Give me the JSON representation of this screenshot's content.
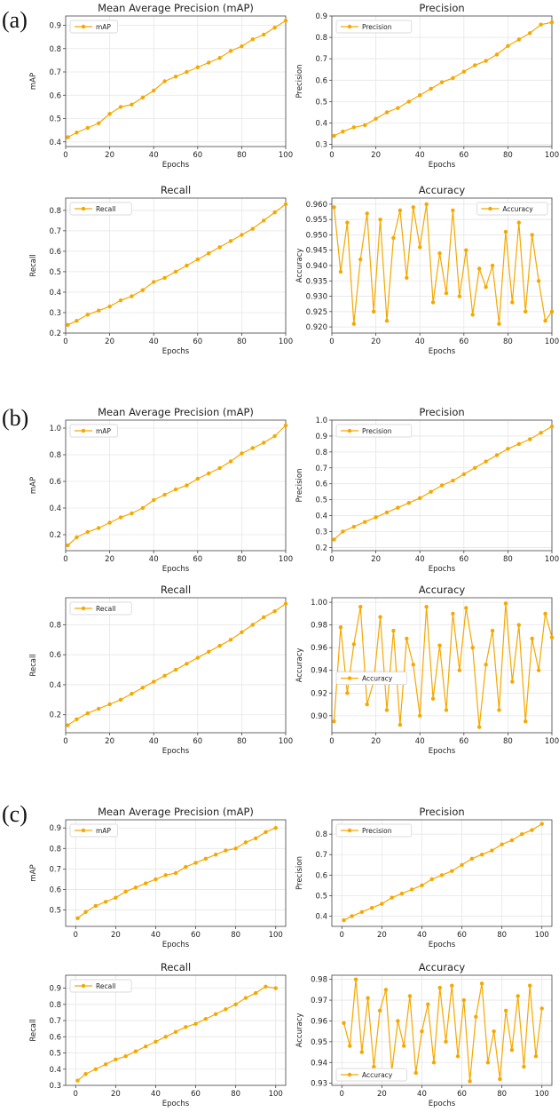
{
  "panels": [
    {
      "label": "(a)"
    },
    {
      "label": "(b)"
    },
    {
      "label": "(c)"
    }
  ],
  "series_color": "#f5a800",
  "chart_data": [
    {
      "type": "line",
      "title": "Mean Average Precision (mAP)",
      "xlabel": "Epochs",
      "ylabel": "mAP",
      "legend": "mAP",
      "legend_position": "top-left",
      "grid": true,
      "xlim": [
        0,
        100
      ],
      "ylim": [
        0.38,
        0.94
      ],
      "xticks": [
        0,
        20,
        40,
        60,
        80,
        100
      ],
      "yticks": [
        0.4,
        0.5,
        0.6,
        0.7,
        0.8,
        0.9
      ],
      "x": [
        1,
        5,
        10,
        15,
        20,
        25,
        30,
        35,
        40,
        45,
        50,
        55,
        60,
        65,
        70,
        75,
        80,
        85,
        90,
        95,
        100
      ],
      "y": [
        0.42,
        0.44,
        0.46,
        0.48,
        0.52,
        0.55,
        0.56,
        0.59,
        0.62,
        0.66,
        0.68,
        0.7,
        0.72,
        0.74,
        0.76,
        0.79,
        0.81,
        0.84,
        0.86,
        0.89,
        0.92
      ]
    },
    {
      "type": "line",
      "title": "Precision",
      "xlabel": "Epochs",
      "ylabel": "Precision",
      "legend": "Precision",
      "legend_position": "top-left",
      "grid": true,
      "xlim": [
        0,
        100
      ],
      "ylim": [
        0.29,
        0.9
      ],
      "xticks": [
        0,
        20,
        40,
        60,
        80,
        100
      ],
      "yticks": [
        0.3,
        0.4,
        0.5,
        0.6,
        0.7,
        0.8,
        0.9
      ],
      "x": [
        1,
        5,
        10,
        15,
        20,
        25,
        30,
        35,
        40,
        45,
        50,
        55,
        60,
        65,
        70,
        75,
        80,
        85,
        90,
        95,
        100
      ],
      "y": [
        0.34,
        0.36,
        0.38,
        0.39,
        0.42,
        0.45,
        0.47,
        0.5,
        0.53,
        0.56,
        0.59,
        0.61,
        0.64,
        0.67,
        0.69,
        0.72,
        0.76,
        0.79,
        0.82,
        0.86,
        0.87
      ]
    },
    {
      "type": "line",
      "title": "Recall",
      "xlabel": "Epochs",
      "ylabel": "Recall",
      "legend": "Recall",
      "legend_position": "top-left",
      "grid": true,
      "xlim": [
        0,
        100
      ],
      "ylim": [
        0.2,
        0.86
      ],
      "xticks": [
        0,
        20,
        40,
        60,
        80,
        100
      ],
      "yticks": [
        0.2,
        0.3,
        0.4,
        0.5,
        0.6,
        0.7,
        0.8
      ],
      "x": [
        1,
        5,
        10,
        15,
        20,
        25,
        30,
        35,
        40,
        45,
        50,
        55,
        60,
        65,
        70,
        75,
        80,
        85,
        90,
        95,
        100
      ],
      "y": [
        0.24,
        0.26,
        0.29,
        0.31,
        0.33,
        0.36,
        0.38,
        0.41,
        0.45,
        0.47,
        0.5,
        0.53,
        0.56,
        0.59,
        0.62,
        0.65,
        0.68,
        0.71,
        0.75,
        0.79,
        0.83
      ]
    },
    {
      "type": "line",
      "title": "Accuracy",
      "xlabel": "Epochs",
      "ylabel": "Accuracy",
      "legend": "Accuracy",
      "legend_position": "top-right",
      "grid": true,
      "xlim": [
        0,
        100
      ],
      "ylim": [
        0.918,
        0.962
      ],
      "xticks": [
        0,
        20,
        40,
        60,
        80,
        100
      ],
      "yticks": [
        0.92,
        0.925,
        0.93,
        0.935,
        0.94,
        0.945,
        0.95,
        0.955,
        0.96
      ],
      "x": [
        1,
        4,
        7,
        10,
        13,
        16,
        19,
        22,
        25,
        28,
        31,
        34,
        37,
        40,
        43,
        46,
        49,
        52,
        55,
        58,
        61,
        64,
        67,
        70,
        73,
        76,
        79,
        82,
        85,
        88,
        91,
        94,
        97,
        100
      ],
      "y": [
        0.959,
        0.938,
        0.954,
        0.921,
        0.942,
        0.957,
        0.925,
        0.955,
        0.922,
        0.949,
        0.958,
        0.936,
        0.959,
        0.946,
        0.96,
        0.928,
        0.944,
        0.931,
        0.958,
        0.93,
        0.945,
        0.924,
        0.939,
        0.933,
        0.94,
        0.921,
        0.951,
        0.928,
        0.954,
        0.925,
        0.95,
        0.935,
        0.922,
        0.925
      ]
    },
    {
      "type": "line",
      "title": "Mean Average Precision (mAP)",
      "xlabel": "Epochs",
      "ylabel": "mAP",
      "legend": "mAP",
      "legend_position": "top-left",
      "grid": true,
      "xlim": [
        0,
        100
      ],
      "ylim": [
        0.08,
        1.06
      ],
      "xticks": [
        0,
        20,
        40,
        60,
        80,
        100
      ],
      "yticks": [
        0.2,
        0.4,
        0.6,
        0.8,
        1.0
      ],
      "x": [
        1,
        5,
        10,
        15,
        20,
        25,
        30,
        35,
        40,
        45,
        50,
        55,
        60,
        65,
        70,
        75,
        80,
        85,
        90,
        95,
        100
      ],
      "y": [
        0.12,
        0.18,
        0.22,
        0.25,
        0.29,
        0.33,
        0.36,
        0.4,
        0.46,
        0.5,
        0.54,
        0.57,
        0.62,
        0.66,
        0.7,
        0.75,
        0.81,
        0.85,
        0.89,
        0.94,
        1.02
      ]
    },
    {
      "type": "line",
      "title": "Precision",
      "xlabel": "Epochs",
      "ylabel": "Precision",
      "legend": "Precision",
      "legend_position": "top-left",
      "grid": true,
      "xlim": [
        0,
        100
      ],
      "ylim": [
        0.18,
        1.0
      ],
      "xticks": [
        0,
        20,
        40,
        60,
        80,
        100
      ],
      "yticks": [
        0.2,
        0.3,
        0.4,
        0.5,
        0.6,
        0.7,
        0.8,
        0.9,
        1.0
      ],
      "x": [
        1,
        5,
        10,
        15,
        20,
        25,
        30,
        35,
        40,
        45,
        50,
        55,
        60,
        65,
        70,
        75,
        80,
        85,
        90,
        95,
        100
      ],
      "y": [
        0.25,
        0.3,
        0.33,
        0.36,
        0.39,
        0.42,
        0.45,
        0.48,
        0.51,
        0.55,
        0.59,
        0.62,
        0.66,
        0.7,
        0.74,
        0.78,
        0.82,
        0.85,
        0.88,
        0.92,
        0.96
      ]
    },
    {
      "type": "line",
      "title": "Recall",
      "xlabel": "Epochs",
      "ylabel": "Recall",
      "legend": "Recall",
      "legend_position": "top-left",
      "grid": true,
      "xlim": [
        0,
        100
      ],
      "ylim": [
        0.08,
        0.98
      ],
      "xticks": [
        0,
        20,
        40,
        60,
        80,
        100
      ],
      "yticks": [
        0.2,
        0.4,
        0.6,
        0.8
      ],
      "x": [
        1,
        5,
        10,
        15,
        20,
        25,
        30,
        35,
        40,
        45,
        50,
        55,
        60,
        65,
        70,
        75,
        80,
        85,
        90,
        95,
        100
      ],
      "y": [
        0.13,
        0.17,
        0.21,
        0.24,
        0.27,
        0.3,
        0.34,
        0.38,
        0.42,
        0.46,
        0.5,
        0.54,
        0.58,
        0.62,
        0.66,
        0.7,
        0.75,
        0.8,
        0.85,
        0.89,
        0.94
      ]
    },
    {
      "type": "line",
      "title": "Accuracy",
      "xlabel": "Epochs",
      "ylabel": "Accuracy",
      "legend": "Accuracy",
      "legend_position": "center-left",
      "grid": true,
      "xlim": [
        0,
        100
      ],
      "ylim": [
        0.885,
        1.004
      ],
      "xticks": [
        0,
        20,
        40,
        60,
        80,
        100
      ],
      "yticks": [
        0.9,
        0.92,
        0.94,
        0.96,
        0.98,
        1.0
      ],
      "x": [
        1,
        4,
        7,
        10,
        13,
        16,
        19,
        22,
        25,
        28,
        31,
        34,
        37,
        40,
        43,
        46,
        49,
        52,
        55,
        58,
        61,
        64,
        67,
        70,
        73,
        76,
        79,
        82,
        85,
        88,
        91,
        94,
        97,
        100
      ],
      "y": [
        0.895,
        0.978,
        0.92,
        0.963,
        0.996,
        0.91,
        0.93,
        0.987,
        0.905,
        0.975,
        0.892,
        0.968,
        0.945,
        0.9,
        0.996,
        0.915,
        0.962,
        0.905,
        0.99,
        0.94,
        0.995,
        0.96,
        0.89,
        0.945,
        0.975,
        0.905,
        0.999,
        0.93,
        0.98,
        0.895,
        0.968,
        0.94,
        0.99,
        0.969
      ]
    },
    {
      "type": "line",
      "title": "Mean Average Precision (mAP)",
      "xlabel": "Epochs",
      "ylabel": "mAP",
      "legend": "mAP",
      "legend_position": "top-left",
      "grid": true,
      "xlim": [
        -5,
        105
      ],
      "ylim": [
        0.42,
        0.94
      ],
      "xticks": [
        0,
        20,
        40,
        60,
        80,
        100
      ],
      "yticks": [
        0.5,
        0.6,
        0.7,
        0.8,
        0.9
      ],
      "x": [
        1,
        5,
        10,
        15,
        20,
        25,
        30,
        35,
        40,
        45,
        50,
        55,
        60,
        65,
        70,
        75,
        80,
        85,
        90,
        95,
        100
      ],
      "y": [
        0.46,
        0.49,
        0.52,
        0.54,
        0.56,
        0.59,
        0.61,
        0.63,
        0.65,
        0.67,
        0.68,
        0.71,
        0.73,
        0.75,
        0.77,
        0.79,
        0.8,
        0.83,
        0.85,
        0.88,
        0.9
      ]
    },
    {
      "type": "line",
      "title": "Precision",
      "xlabel": "Epochs",
      "ylabel": "Precision",
      "legend": "Precision",
      "legend_position": "top-left",
      "grid": true,
      "xlim": [
        -5,
        105
      ],
      "ylim": [
        0.35,
        0.87
      ],
      "xticks": [
        0,
        20,
        40,
        60,
        80,
        100
      ],
      "yticks": [
        0.4,
        0.5,
        0.6,
        0.7,
        0.8
      ],
      "x": [
        1,
        5,
        10,
        15,
        20,
        25,
        30,
        35,
        40,
        45,
        50,
        55,
        60,
        65,
        70,
        75,
        80,
        85,
        90,
        95,
        100
      ],
      "y": [
        0.38,
        0.4,
        0.42,
        0.44,
        0.46,
        0.49,
        0.51,
        0.53,
        0.55,
        0.58,
        0.6,
        0.62,
        0.65,
        0.68,
        0.7,
        0.72,
        0.75,
        0.77,
        0.8,
        0.82,
        0.85
      ]
    },
    {
      "type": "line",
      "title": "Recall",
      "xlabel": "Epochs",
      "ylabel": "Recall",
      "legend": "Recall",
      "legend_position": "top-left",
      "grid": true,
      "xlim": [
        -5,
        105
      ],
      "ylim": [
        0.3,
        0.98
      ],
      "xticks": [
        0,
        20,
        40,
        60,
        80,
        100
      ],
      "yticks": [
        0.3,
        0.4,
        0.5,
        0.6,
        0.7,
        0.8,
        0.9
      ],
      "x": [
        1,
        5,
        10,
        15,
        20,
        25,
        30,
        35,
        40,
        45,
        50,
        55,
        60,
        65,
        70,
        75,
        80,
        85,
        90,
        95,
        100
      ],
      "y": [
        0.33,
        0.37,
        0.4,
        0.43,
        0.46,
        0.48,
        0.51,
        0.54,
        0.57,
        0.6,
        0.63,
        0.66,
        0.68,
        0.71,
        0.74,
        0.77,
        0.8,
        0.84,
        0.87,
        0.91,
        0.9
      ]
    },
    {
      "type": "line",
      "title": "Accuracy",
      "xlabel": "Epochs",
      "ylabel": "Accuracy",
      "legend": "Accuracy",
      "legend_position": "bottom-left",
      "grid": true,
      "xlim": [
        -5,
        105
      ],
      "ylim": [
        0.929,
        0.982
      ],
      "xticks": [
        0,
        20,
        40,
        60,
        80,
        100
      ],
      "yticks": [
        0.93,
        0.94,
        0.95,
        0.96,
        0.97,
        0.98
      ],
      "x": [
        1,
        4,
        7,
        10,
        13,
        16,
        19,
        22,
        25,
        28,
        31,
        34,
        37,
        40,
        43,
        46,
        49,
        52,
        55,
        58,
        61,
        64,
        67,
        70,
        73,
        76,
        79,
        82,
        85,
        88,
        91,
        94,
        97,
        100
      ],
      "y": [
        0.959,
        0.948,
        0.98,
        0.945,
        0.971,
        0.938,
        0.965,
        0.975,
        0.936,
        0.96,
        0.948,
        0.972,
        0.935,
        0.955,
        0.968,
        0.94,
        0.976,
        0.95,
        0.977,
        0.943,
        0.97,
        0.931,
        0.962,
        0.978,
        0.94,
        0.955,
        0.932,
        0.965,
        0.946,
        0.972,
        0.938,
        0.977,
        0.943,
        0.966
      ]
    }
  ]
}
